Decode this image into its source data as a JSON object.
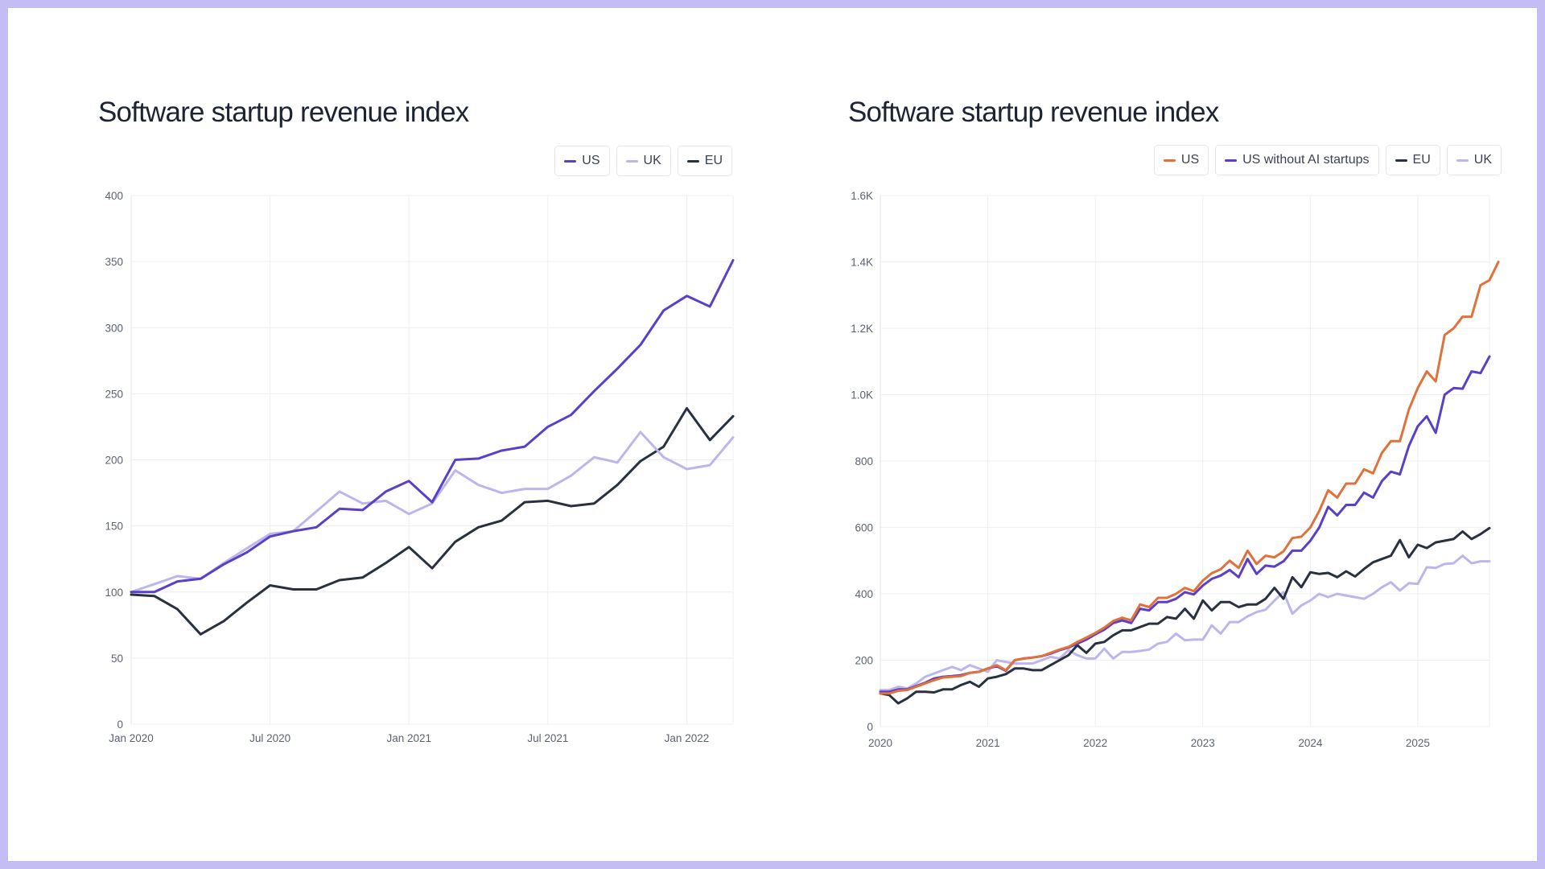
{
  "chart_data": [
    {
      "type": "line",
      "title": "Software startup revenue index",
      "xlabel": "",
      "ylabel": "",
      "x_tick_labels": [
        "Jan 2020",
        "Jul 2020",
        "Jan 2021",
        "Jul 2021",
        "Jan 2022"
      ],
      "x_tick_index": [
        0,
        6,
        12,
        18,
        24
      ],
      "y_ticks": [
        0,
        50,
        100,
        150,
        200,
        250,
        300,
        350,
        400
      ],
      "y_tick_labels": [
        "0",
        "50",
        "100",
        "150",
        "200",
        "250",
        "300",
        "350",
        "400"
      ],
      "ylim": [
        0,
        400
      ],
      "x_start": "Jan 2020",
      "x_frequency": "monthly",
      "grid": true,
      "legend_position": "top-right",
      "series": [
        {
          "name": "US",
          "color": "#5b3fc8",
          "values": [
            100,
            100,
            108,
            110,
            121,
            130,
            142,
            146,
            149,
            163,
            162,
            176,
            184,
            168,
            200,
            201,
            207,
            210,
            225,
            234,
            252,
            269,
            287,
            313,
            324,
            316,
            351
          ]
        },
        {
          "name": "UK",
          "color": "#bdb6ec",
          "values": [
            100,
            106,
            112,
            110,
            122,
            133,
            144,
            146,
            161,
            176,
            167,
            169,
            159,
            167,
            192,
            181,
            175,
            178,
            178,
            188,
            202,
            198,
            221,
            202,
            193,
            196,
            217
          ]
        },
        {
          "name": "EU",
          "color": "#27313f",
          "values": [
            98,
            97,
            87,
            68,
            78,
            92,
            105,
            102,
            102,
            109,
            111,
            122,
            134,
            118,
            138,
            149,
            154,
            168,
            169,
            165,
            167,
            181,
            199,
            210,
            239,
            215,
            233
          ]
        }
      ]
    },
    {
      "type": "line",
      "title": "Software startup revenue index",
      "xlabel": "",
      "ylabel": "",
      "x_tick_labels": [
        "2020",
        "2021",
        "2022",
        "2023",
        "2024",
        "2025"
      ],
      "x_tick_index": [
        0,
        12,
        24,
        36,
        48,
        60
      ],
      "y_ticks": [
        0,
        200,
        400,
        600,
        800,
        1000,
        1200,
        1400,
        1600
      ],
      "y_tick_labels": [
        "0",
        "200",
        "400",
        "600",
        "800",
        "1.0K",
        "1.2K",
        "1.4K",
        "1.6K"
      ],
      "ylim": [
        0,
        1600
      ],
      "x_start": "Jan 2020",
      "x_frequency": "monthly",
      "grid": true,
      "legend_position": "top-right",
      "series": [
        {
          "name": "US",
          "color": "#e0713a",
          "values": [
            100,
            100,
            108,
            110,
            120,
            130,
            140,
            148,
            150,
            152,
            162,
            165,
            175,
            185,
            170,
            200,
            205,
            208,
            212,
            222,
            232,
            240,
            255,
            268,
            282,
            298,
            318,
            328,
            320,
            368,
            360,
            388,
            388,
            400,
            418,
            408,
            440,
            462,
            474,
            500,
            478,
            530,
            490,
            515,
            510,
            528,
            568,
            572,
            600,
            650,
            712,
            690,
            732,
            732,
            775,
            763,
            825,
            860,
            860,
            955,
            1020,
            1070,
            1040,
            1180,
            1200,
            1235,
            1235,
            1330,
            1345,
            1400
          ]
        },
        {
          "name": "US without AI startups",
          "color": "#5b3fc8",
          "values": [
            105,
            105,
            112,
            112,
            122,
            132,
            145,
            150,
            152,
            155,
            162,
            165,
            175,
            182,
            168,
            200,
            205,
            208,
            212,
            220,
            230,
            238,
            250,
            262,
            278,
            292,
            312,
            320,
            312,
            355,
            350,
            375,
            375,
            385,
            405,
            398,
            425,
            445,
            455,
            472,
            450,
            505,
            460,
            485,
            482,
            498,
            530,
            530,
            560,
            600,
            662,
            636,
            668,
            668,
            705,
            690,
            740,
            768,
            760,
            845,
            905,
            935,
            885,
            1000,
            1020,
            1018,
            1070,
            1065,
            1115
          ]
        },
        {
          "name": "EU",
          "color": "#27313f",
          "values": [
            100,
            95,
            70,
            85,
            105,
            105,
            103,
            112,
            112,
            125,
            135,
            120,
            145,
            150,
            158,
            175,
            175,
            170,
            170,
            185,
            200,
            215,
            245,
            222,
            250,
            255,
            275,
            290,
            290,
            300,
            310,
            310,
            330,
            325,
            355,
            325,
            380,
            350,
            375,
            375,
            360,
            368,
            368,
            385,
            418,
            385,
            450,
            420,
            465,
            460,
            463,
            450,
            468,
            452,
            475,
            495,
            505,
            515,
            562,
            510,
            548,
            538,
            555,
            560,
            565,
            588,
            565,
            580,
            598
          ]
        },
        {
          "name": "UK",
          "color": "#bdb6ec",
          "values": [
            110,
            110,
            120,
            115,
            130,
            150,
            160,
            170,
            180,
            170,
            185,
            175,
            165,
            200,
            195,
            190,
            190,
            190,
            200,
            210,
            205,
            230,
            215,
            205,
            205,
            235,
            205,
            225,
            225,
            228,
            232,
            250,
            255,
            280,
            260,
            262,
            262,
            305,
            280,
            315,
            315,
            332,
            345,
            352,
            380,
            405,
            340,
            365,
            380,
            400,
            390,
            400,
            395,
            390,
            385,
            400,
            420,
            435,
            410,
            432,
            430,
            480,
            478,
            490,
            492,
            515,
            492,
            498,
            498
          ]
        }
      ]
    }
  ]
}
